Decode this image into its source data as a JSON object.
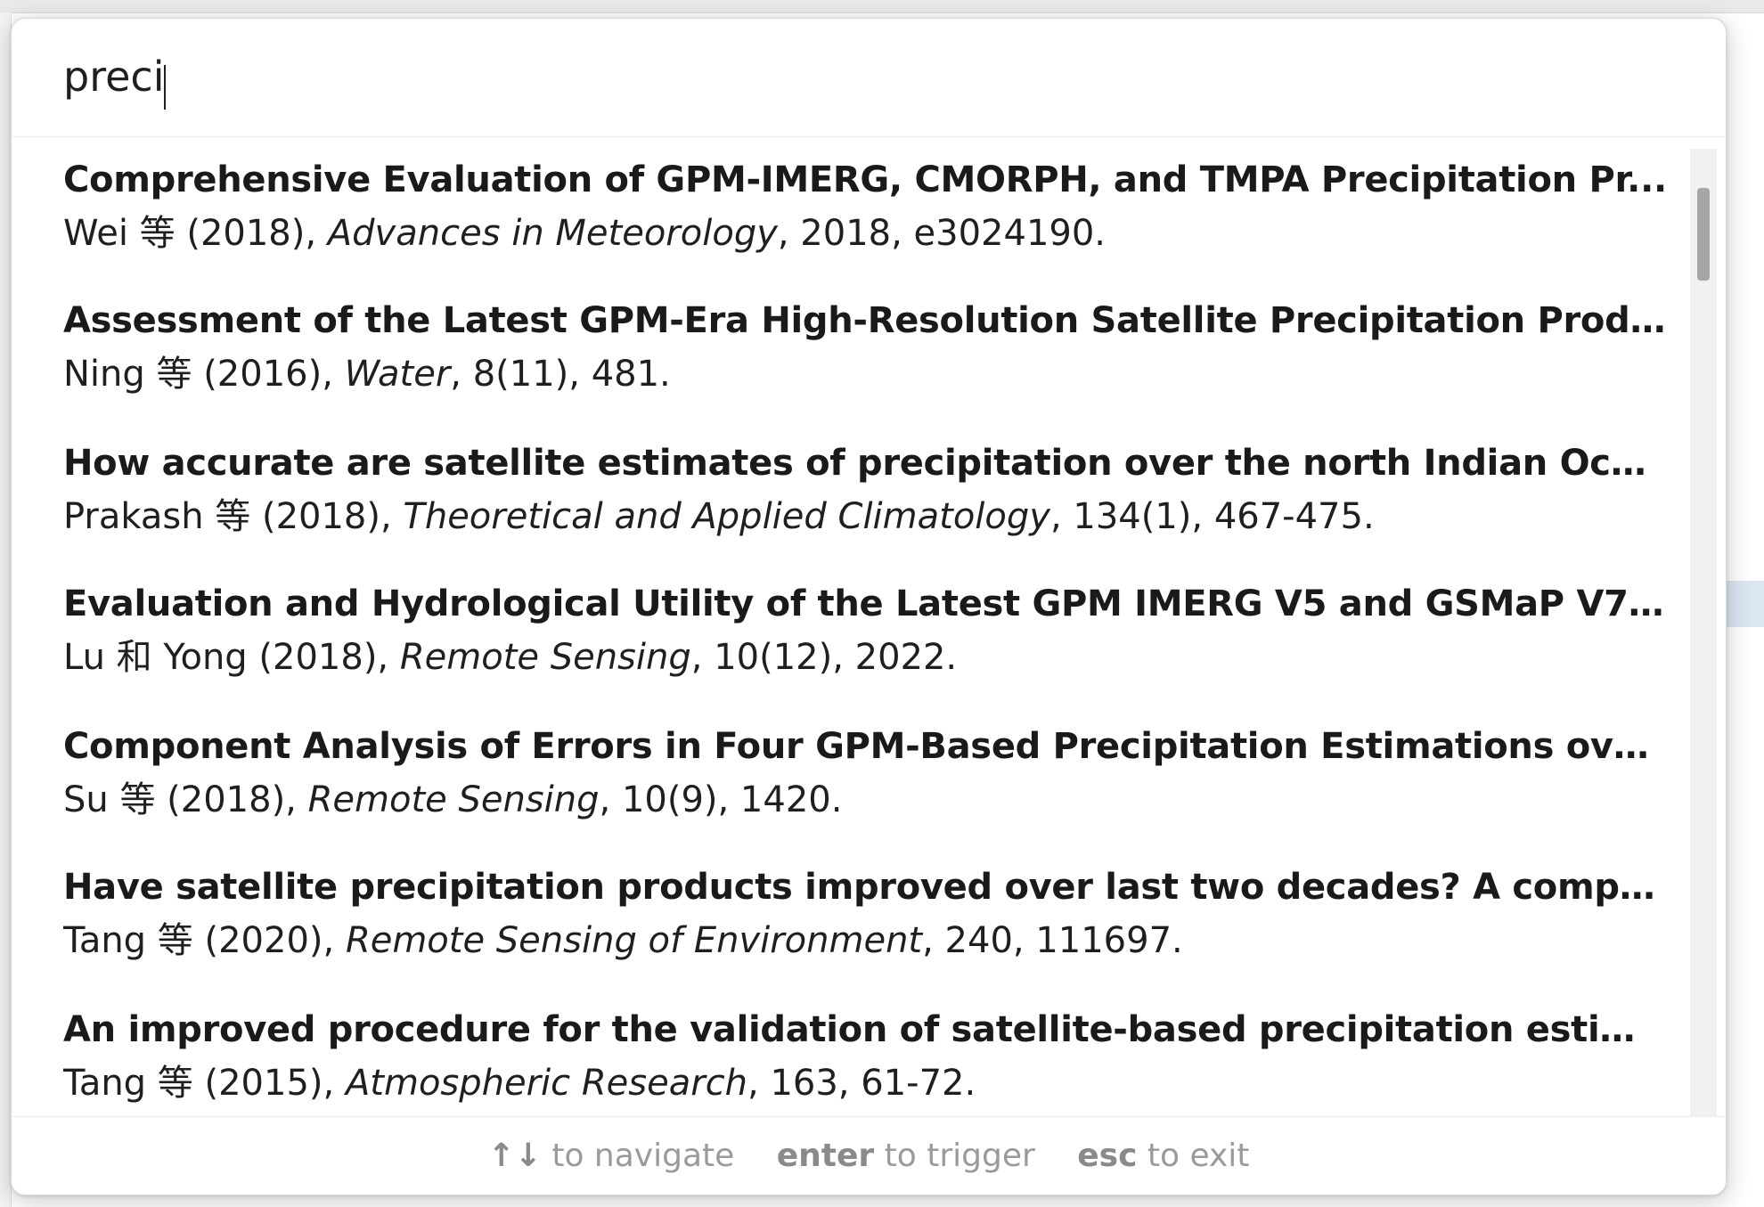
{
  "search": {
    "value": "preci"
  },
  "results": [
    {
      "title": "Comprehensive Evaluation of GPM-IMERG, CMORPH, and TMPA Precipitation Pr...",
      "authors": "Wei 等 (2018), ",
      "journal": "Advances in Meteorology",
      "details": ", 2018, e3024190."
    },
    {
      "title": "Assessment of the Latest GPM-Era High-Resolution Satellite Precipitation Produc...",
      "authors": "Ning 等 (2016), ",
      "journal": "Water",
      "details": ", 8(11), 481."
    },
    {
      "title": "How accurate are satellite estimates of precipitation over the north Indian Ocean?",
      "authors": "Prakash 等 (2018), ",
      "journal": "Theoretical and Applied Climatology",
      "details": ", 134(1), 467-475."
    },
    {
      "title": "Evaluation and Hydrological Utility of the Latest GPM IMERG V5 and GSMaP V7 ...",
      "authors": "Lu 和 Yong (2018), ",
      "journal": "Remote Sensing",
      "details": ", 10(12), 2022."
    },
    {
      "title": "Component Analysis of Errors in Four GPM-Based Precipitation Estimations over ...",
      "authors": "Su 等 (2018), ",
      "journal": "Remote Sensing",
      "details": ", 10(9), 1420."
    },
    {
      "title": "Have satellite precipitation products improved over last two decades? A compreh...",
      "authors": "Tang 等 (2020), ",
      "journal": "Remote Sensing of Environment",
      "details": ", 240, 111697."
    },
    {
      "title": "An improved procedure for the validation of satellite-based precipitation estimates",
      "authors": "Tang 等 (2015), ",
      "journal": "Atmospheric Research",
      "details": ", 163, 61-72."
    }
  ],
  "footer": {
    "navigate_key": "↑↓",
    "navigate_text": "to navigate",
    "trigger_key": "enter",
    "trigger_text": "to trigger",
    "exit_key": "esc",
    "exit_text": "to exit"
  }
}
